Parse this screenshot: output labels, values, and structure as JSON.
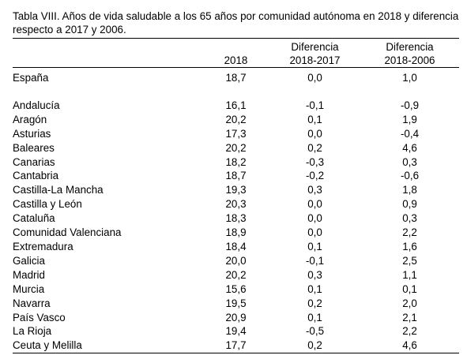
{
  "caption": "Tabla VIII. Años de vida saludable a los 65 años por comunidad autónoma en 2018 y diferencia respecto a 2017 y 2006.",
  "headers": {
    "region": "",
    "year2018": "2018",
    "diff2017": "Diferencia 2018-2017",
    "diff2006": "Diferencia 2018-2006"
  },
  "national": {
    "name": "España",
    "v2018": "18,7",
    "d2017": "0,0",
    "d2006": "1,0"
  },
  "rows": [
    {
      "name": "Andalucía",
      "v2018": "16,1",
      "d2017": "-0,1",
      "d2006": "-0,9"
    },
    {
      "name": "Aragón",
      "v2018": "20,2",
      "d2017": "0,1",
      "d2006": "1,9"
    },
    {
      "name": "Asturias",
      "v2018": "17,3",
      "d2017": "0,0",
      "d2006": "-0,4"
    },
    {
      "name": "Baleares",
      "v2018": "20,2",
      "d2017": "0,2",
      "d2006": "4,6"
    },
    {
      "name": "Canarias",
      "v2018": "18,2",
      "d2017": "-0,3",
      "d2006": "0,3"
    },
    {
      "name": "Cantabria",
      "v2018": "18,7",
      "d2017": "-0,2",
      "d2006": "-0,6"
    },
    {
      "name": "Castilla-La Mancha",
      "v2018": "19,3",
      "d2017": "0,3",
      "d2006": "1,8"
    },
    {
      "name": "Castilla y León",
      "v2018": "20,3",
      "d2017": "0,0",
      "d2006": "0,9"
    },
    {
      "name": "Cataluña",
      "v2018": "18,3",
      "d2017": "0,0",
      "d2006": "0,3"
    },
    {
      "name": "Comunidad Valenciana",
      "v2018": "18,9",
      "d2017": "0,0",
      "d2006": "2,2"
    },
    {
      "name": "Extremadura",
      "v2018": "18,4",
      "d2017": "0,1",
      "d2006": "1,6"
    },
    {
      "name": "Galicia",
      "v2018": "20,0",
      "d2017": "-0,1",
      "d2006": "2,5"
    },
    {
      "name": "Madrid",
      "v2018": "20,2",
      "d2017": "0,3",
      "d2006": "1,1"
    },
    {
      "name": "Murcia",
      "v2018": "15,6",
      "d2017": "0,1",
      "d2006": "0,1"
    },
    {
      "name": "Navarra",
      "v2018": "19,5",
      "d2017": "0,2",
      "d2006": "2,0"
    },
    {
      "name": "País Vasco",
      "v2018": "20,9",
      "d2017": "0,1",
      "d2006": "2,1"
    },
    {
      "name": "La Rioja",
      "v2018": "19,4",
      "d2017": "-0,5",
      "d2006": "2,2"
    },
    {
      "name": "Ceuta y Melilla",
      "v2018": "17,7",
      "d2017": "0,2",
      "d2006": "4,6"
    }
  ]
}
